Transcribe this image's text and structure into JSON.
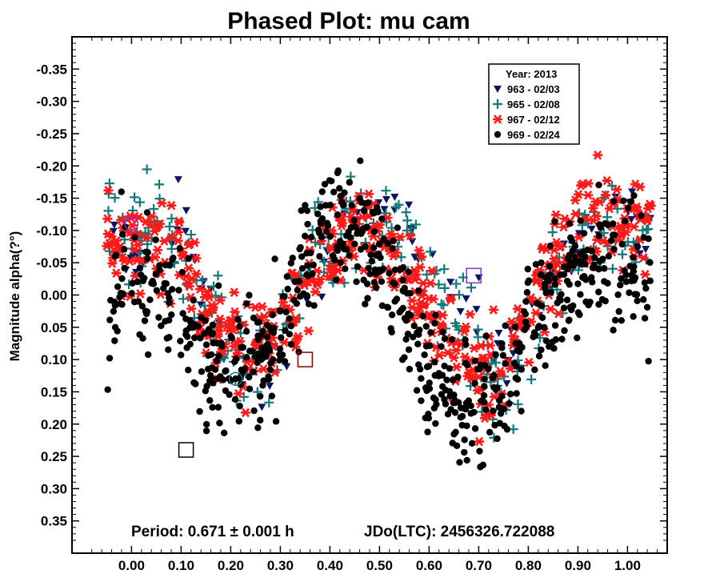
{
  "chart_data": {
    "type": "scatter",
    "title": "Phased Plot: mu cam",
    "xlabel": "",
    "ylabel": "Magnitude alpha(?°)",
    "xlim": [
      -0.12,
      1.08
    ],
    "ylim": [
      -0.4,
      0.4
    ],
    "y_inverted": true,
    "grid": false,
    "legend_position": "top-right",
    "x_ticks": [
      "0.00",
      "0.10",
      "0.20",
      "0.30",
      "0.40",
      "0.50",
      "0.60",
      "0.70",
      "0.80",
      "0.90",
      "1.00"
    ],
    "y_ticks": [
      "-0.35",
      "-0.30",
      "-0.25",
      "-0.20",
      "-0.15",
      "-0.10",
      "-0.05",
      "0.00",
      "0.05",
      "0.10",
      "0.15",
      "0.20",
      "0.25",
      "0.30",
      "0.35"
    ],
    "legend_title": "Year: 2013",
    "series": [
      {
        "name": "963 - 02/03",
        "marker": "triangle-down",
        "color": "#0a1560",
        "curve_x": [
          -0.05,
          0.0,
          0.05,
          0.1,
          0.15,
          0.2,
          0.25,
          0.3,
          0.35,
          0.4,
          0.45,
          0.5,
          0.55,
          0.6,
          0.65,
          0.7,
          0.75,
          0.8,
          0.85,
          0.9,
          0.95,
          1.0,
          1.05
        ],
        "curve_y": [
          -0.1,
          -0.05,
          -0.1,
          -0.13,
          0.02,
          0.1,
          0.12,
          0.1,
          0.0,
          -0.08,
          -0.13,
          -0.14,
          -0.12,
          -0.05,
          0.0,
          0.05,
          0.12,
          0.06,
          -0.03,
          -0.07,
          -0.1,
          -0.1,
          -0.1
        ]
      },
      {
        "name": "965 - 02/08",
        "marker": "plus",
        "color": "#11787a",
        "curve_x": [
          -0.05,
          0.0,
          0.05,
          0.1,
          0.15,
          0.2,
          0.25,
          0.3,
          0.35,
          0.4,
          0.45,
          0.5,
          0.55,
          0.6,
          0.65,
          0.7,
          0.75,
          0.8,
          0.85,
          0.9,
          0.95,
          1.0,
          1.05
        ],
        "curve_y": [
          -0.12,
          -0.08,
          -0.1,
          -0.07,
          0.02,
          0.08,
          0.09,
          0.06,
          -0.03,
          -0.09,
          -0.12,
          -0.12,
          -0.09,
          -0.04,
          0.02,
          0.1,
          0.15,
          0.08,
          -0.02,
          -0.07,
          -0.1,
          -0.1,
          -0.1
        ]
      },
      {
        "name": "967 - 02/12",
        "marker": "asterisk",
        "color": "#ff1a1a",
        "curve_x": [
          -0.05,
          0.0,
          0.05,
          0.1,
          0.15,
          0.2,
          0.25,
          0.3,
          0.35,
          0.4,
          0.45,
          0.5,
          0.55,
          0.6,
          0.65,
          0.7,
          0.75,
          0.8,
          0.85,
          0.9,
          0.95,
          1.0,
          1.05
        ],
        "curve_y": [
          -0.11,
          -0.09,
          -0.08,
          -0.06,
          0.04,
          0.07,
          0.09,
          0.06,
          -0.02,
          -0.07,
          -0.1,
          -0.09,
          -0.04,
          0.02,
          0.08,
          0.13,
          0.11,
          0.03,
          -0.05,
          -0.1,
          -0.12,
          -0.11,
          -0.1
        ]
      },
      {
        "name": "969 - 02/24",
        "marker": "circle",
        "color": "#000000",
        "curve_x": [
          -0.05,
          0.0,
          0.05,
          0.1,
          0.15,
          0.2,
          0.25,
          0.3,
          0.35,
          0.4,
          0.45,
          0.5,
          0.55,
          0.6,
          0.65,
          0.7,
          0.75,
          0.8,
          0.85,
          0.9,
          0.95,
          1.0,
          1.05
        ],
        "curve_y": [
          0.02,
          -0.02,
          -0.01,
          0.03,
          0.1,
          0.12,
          0.11,
          0.05,
          -0.05,
          -0.11,
          -0.1,
          -0.06,
          0.02,
          0.1,
          0.16,
          0.18,
          0.14,
          0.05,
          0.0,
          -0.04,
          -0.06,
          -0.05,
          -0.04
        ]
      }
    ],
    "annotations": {
      "period": "Period: 0.671 ± 0.001 h",
      "epoch": "JDo(LTC): 2456326.722088"
    }
  }
}
